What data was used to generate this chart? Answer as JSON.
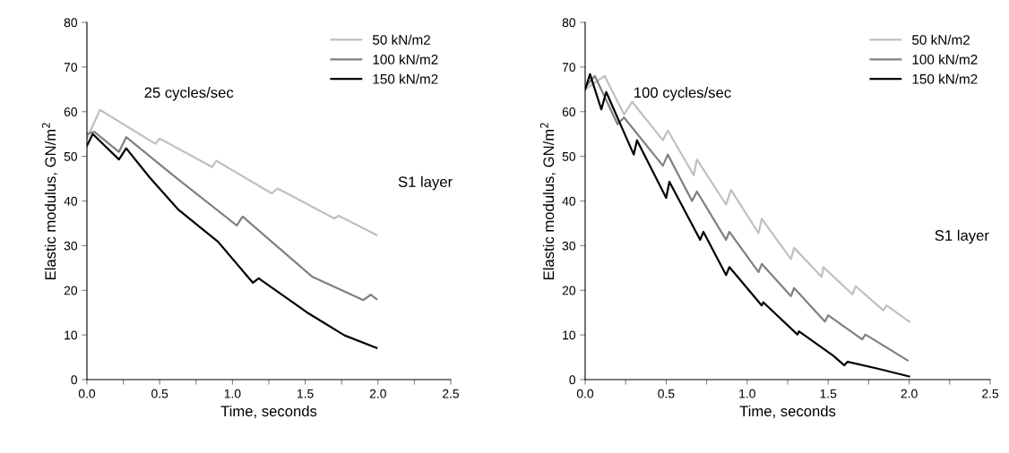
{
  "chart_data": [
    {
      "type": "line",
      "xlabel": "Time, seconds",
      "ylabel": "Elastic modulus, GN/m$^{2}$",
      "xlim": [
        0,
        2.5
      ],
      "ylim": [
        0,
        80
      ],
      "xticks": [
        {
          "value": 0,
          "label": "0.0"
        },
        {
          "value": 0.25,
          "label": null
        },
        {
          "value": 0.5,
          "label": "0.5"
        },
        {
          "value": 0.75,
          "label": null
        },
        {
          "value": 1,
          "label": "1.0"
        },
        {
          "value": 1.25,
          "label": null
        },
        {
          "value": 1.5,
          "label": "1.5"
        },
        {
          "value": 1.75,
          "label": null
        },
        {
          "value": 2,
          "label": "2.0"
        },
        {
          "value": 2.25,
          "label": null
        },
        {
          "value": 2.5,
          "label": "2.5"
        }
      ],
      "yticks": [
        0,
        10,
        20,
        30,
        40,
        50,
        60,
        70,
        80
      ],
      "grid": false,
      "legend": "top right",
      "annotations": [
        "25 cycles/sec",
        "S1 layer"
      ],
      "series": [
        {
          "name": "50 kN/m2",
          "color": "#c0c0c0",
          "x": [
            0,
            0.09,
            0.47,
            0.5,
            0.86,
            0.89,
            1.27,
            1.31,
            1.7,
            1.73,
            1.99
          ],
          "values": [
            54,
            60.4,
            52.8,
            54,
            47.6,
            49,
            41.7,
            42.8,
            36.1,
            36.7,
            32.4
          ]
        },
        {
          "name": "100 kN/m2",
          "color": "#808080",
          "x": [
            0,
            0.05,
            0.22,
            0.27,
            0.61,
            1.03,
            1.07,
            1.55,
            1.9,
            1.95,
            1.99
          ],
          "values": [
            55,
            55.5,
            51,
            54.3,
            45.3,
            34.5,
            36.5,
            23,
            17.8,
            19,
            18
          ]
        },
        {
          "name": "150 kN/m2",
          "color": "#000000",
          "x": [
            0,
            0.04,
            0.22,
            0.27,
            0.43,
            0.63,
            0.9,
            1.14,
            1.18,
            1.51,
            1.77,
            1.99
          ],
          "values": [
            52.4,
            55,
            49.3,
            51.8,
            45.3,
            38,
            30.9,
            21.7,
            22.7,
            15.1,
            9.9,
            7.1
          ]
        }
      ]
    },
    {
      "type": "line",
      "xlabel": "Time, seconds",
      "ylabel": "Elastic modulus, GN/m$^{2}$",
      "xlim": [
        0,
        2.5
      ],
      "ylim": [
        0,
        80
      ],
      "xticks": [
        {
          "value": 0,
          "label": "0.0"
        },
        {
          "value": 0.25,
          "label": null
        },
        {
          "value": 0.5,
          "label": "0.5"
        },
        {
          "value": 0.75,
          "label": null
        },
        {
          "value": 1,
          "label": "1.0"
        },
        {
          "value": 1.25,
          "label": null
        },
        {
          "value": 1.5,
          "label": "1.5"
        },
        {
          "value": 1.75,
          "label": null
        },
        {
          "value": 2,
          "label": "2.0"
        },
        {
          "value": 2.25,
          "label": null
        },
        {
          "value": 2.5,
          "label": "2.5"
        }
      ],
      "yticks": [
        0,
        10,
        20,
        30,
        40,
        50,
        60,
        70,
        80
      ],
      "grid": false,
      "legend": "top right",
      "annotations": [
        "100 cycles/sec",
        "S1 layer"
      ],
      "series": [
        {
          "name": "50 kN/m2",
          "color": "#c0c0c0",
          "x": [
            0,
            0.12,
            0.24,
            0.29,
            0.48,
            0.51,
            0.67,
            0.69,
            0.87,
            0.9,
            1.07,
            1.09,
            1.27,
            1.29,
            1.46,
            1.47,
            1.65,
            1.67,
            1.84,
            1.86,
            2.0
          ],
          "values": [
            65,
            68,
            59.4,
            62.2,
            53.6,
            55.8,
            45.8,
            49.3,
            39.2,
            42.5,
            32.8,
            36,
            27,
            29.5,
            23,
            25.2,
            19.1,
            20.9,
            15.5,
            16.6,
            13
          ]
        },
        {
          "name": "100 kN/m2",
          "color": "#808080",
          "x": [
            0,
            0.06,
            0.2,
            0.24,
            0.48,
            0.51,
            0.66,
            0.69,
            0.87,
            0.89,
            1.07,
            1.09,
            1.27,
            1.29,
            1.48,
            1.5,
            1.71,
            1.73,
            1.99
          ],
          "values": [
            65.5,
            68,
            57.2,
            58.7,
            47.9,
            50.4,
            40,
            42.1,
            31.3,
            33.1,
            24.1,
            25.9,
            18.7,
            20.5,
            13,
            14.4,
            9,
            10.1,
            4.3
          ]
        },
        {
          "name": "150 kN/m2",
          "color": "#000000",
          "x": [
            0,
            0.03,
            0.1,
            0.13,
            0.3,
            0.32,
            0.5,
            0.52,
            0.71,
            0.73,
            0.87,
            0.89,
            1.09,
            1.1,
            1.31,
            1.32,
            1.53,
            1.6,
            1.62,
            1.8,
            2.0
          ],
          "values": [
            65,
            68.4,
            60.5,
            64.4,
            50.4,
            53.6,
            40.7,
            44.3,
            31.3,
            33.1,
            23.4,
            25.2,
            16.6,
            17.3,
            10.1,
            10.8,
            5.4,
            3.2,
            4,
            2.5,
            0.7
          ]
        }
      ]
    }
  ]
}
